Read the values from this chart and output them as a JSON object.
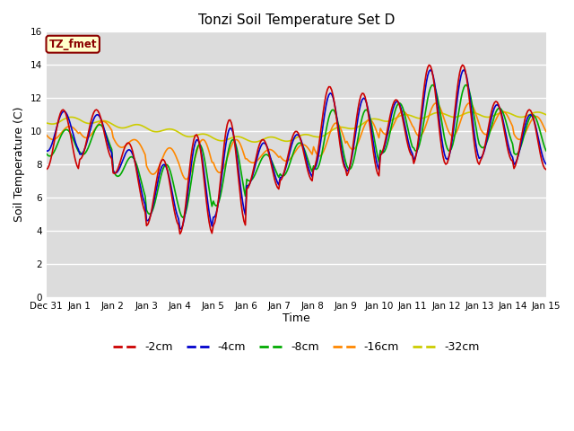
{
  "title": "Tonzi Soil Temperature Set D",
  "xlabel": "Time",
  "ylabel": "Soil Temperature (C)",
  "ylim": [
    0,
    16
  ],
  "yticks": [
    0,
    2,
    4,
    6,
    8,
    10,
    12,
    14,
    16
  ],
  "bg_color": "#dcdcdc",
  "annotation_text": "TZ_fmet",
  "annotation_bg": "#ffffcc",
  "annotation_border": "#8b0000",
  "colors": {
    "-2cm": "#cc0000",
    "-4cm": "#0000cc",
    "-8cm": "#00aa00",
    "-16cm": "#ff8800",
    "-32cm": "#cccc00"
  },
  "series_labels": [
    "-2cm",
    "-4cm",
    "-8cm",
    "-16cm",
    "-32cm"
  ],
  "legend_colors": [
    "#cc0000",
    "#0000cc",
    "#00aa00",
    "#ff8800",
    "#cccc00"
  ],
  "x_tick_labels": [
    "Dec 31",
    "Jan 1",
    "Jan 2",
    "Jan 3",
    "Jan 4",
    "Jan 5",
    "Jan 6",
    "Jan 7",
    "Jan 8",
    "Jan 9",
    "Jan 10",
    "Jan 11",
    "Jan 12",
    "Jan 13",
    "Jan 14",
    "Jan 15"
  ]
}
